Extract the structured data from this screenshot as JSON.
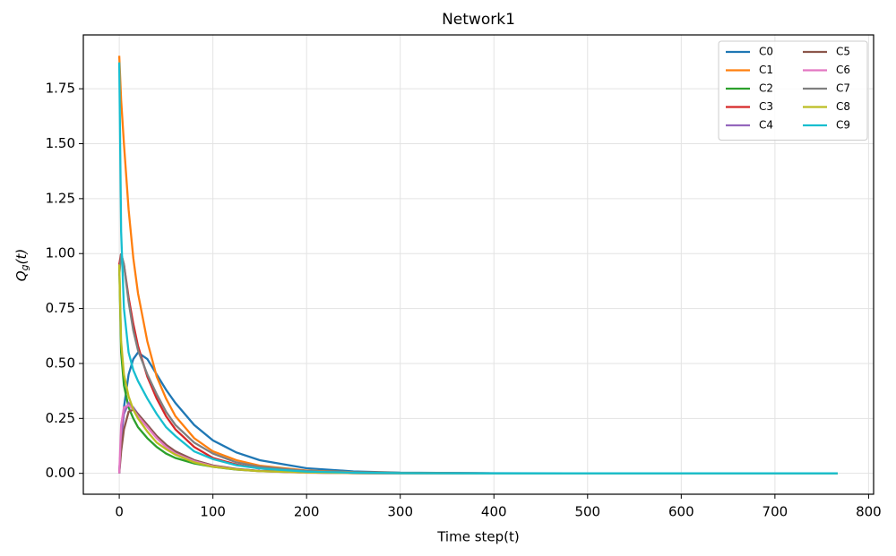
{
  "chart_data": {
    "type": "line",
    "title": "Network1",
    "xlabel": "Time step(t)",
    "ylabel": [
      "Q",
      "g",
      "(t)"
    ],
    "x": [
      0,
      2,
      5,
      10,
      15,
      20,
      30,
      40,
      50,
      60,
      80,
      100,
      125,
      150,
      200,
      250,
      300,
      400,
      500,
      600,
      767
    ],
    "series": [
      {
        "name": "C0",
        "color": "#1f77b4",
        "values": [
          0,
          0.15,
          0.3,
          0.45,
          0.52,
          0.55,
          0.52,
          0.45,
          0.38,
          0.32,
          0.22,
          0.15,
          0.095,
          0.06,
          0.023,
          0.009,
          0.003,
          0.0005,
          0.0001,
          0,
          0
        ]
      },
      {
        "name": "C1",
        "color": "#ff7f0e",
        "values": [
          1.9,
          1.7,
          1.5,
          1.2,
          0.98,
          0.82,
          0.6,
          0.44,
          0.34,
          0.26,
          0.16,
          0.1,
          0.06,
          0.035,
          0.013,
          0.005,
          0.002,
          0,
          0,
          0,
          0
        ]
      },
      {
        "name": "C2",
        "color": "#2ca02c",
        "values": [
          0.95,
          0.55,
          0.4,
          0.3,
          0.25,
          0.21,
          0.16,
          0.12,
          0.09,
          0.07,
          0.045,
          0.03,
          0.017,
          0.01,
          0.004,
          0.0015,
          0.0005,
          0,
          0,
          0,
          0
        ]
      },
      {
        "name": "C3",
        "color": "#d62728",
        "values": [
          0.95,
          1.0,
          0.95,
          0.8,
          0.68,
          0.58,
          0.44,
          0.34,
          0.26,
          0.2,
          0.12,
          0.07,
          0.04,
          0.022,
          0.007,
          0.002,
          0.001,
          0,
          0,
          0,
          0
        ]
      },
      {
        "name": "C4",
        "color": "#9467bd",
        "values": [
          0,
          0.15,
          0.27,
          0.32,
          0.3,
          0.27,
          0.22,
          0.17,
          0.13,
          0.1,
          0.06,
          0.035,
          0.02,
          0.011,
          0.004,
          0.001,
          0,
          0,
          0,
          0,
          0
        ]
      },
      {
        "name": "C5",
        "color": "#8c564b",
        "values": [
          0,
          0.1,
          0.2,
          0.28,
          0.29,
          0.27,
          0.22,
          0.17,
          0.13,
          0.1,
          0.06,
          0.036,
          0.02,
          0.011,
          0.004,
          0.001,
          0,
          0,
          0,
          0,
          0
        ]
      },
      {
        "name": "C6",
        "color": "#e377c2",
        "values": [
          0,
          0.22,
          0.3,
          0.31,
          0.29,
          0.26,
          0.21,
          0.16,
          0.12,
          0.09,
          0.055,
          0.033,
          0.018,
          0.01,
          0.003,
          0.001,
          0,
          0,
          0,
          0,
          0
        ]
      },
      {
        "name": "C7",
        "color": "#7f7f7f",
        "values": [
          0.9,
          1.0,
          0.95,
          0.78,
          0.65,
          0.56,
          0.45,
          0.36,
          0.28,
          0.22,
          0.14,
          0.09,
          0.05,
          0.03,
          0.011,
          0.004,
          0.001,
          0,
          0,
          0,
          0
        ]
      },
      {
        "name": "C8",
        "color": "#bcbd22",
        "values": [
          0.95,
          0.6,
          0.45,
          0.35,
          0.29,
          0.25,
          0.19,
          0.14,
          0.11,
          0.085,
          0.05,
          0.03,
          0.018,
          0.01,
          0.004,
          0.0015,
          0.0005,
          0,
          0,
          0,
          0
        ]
      },
      {
        "name": "C9",
        "color": "#17becf",
        "values": [
          1.87,
          1.1,
          0.75,
          0.55,
          0.47,
          0.42,
          0.34,
          0.27,
          0.21,
          0.17,
          0.1,
          0.065,
          0.037,
          0.022,
          0.008,
          0.003,
          0.001,
          0,
          0,
          0,
          0
        ]
      }
    ],
    "xlim": [
      -38.35,
      805.35
    ],
    "xticks": [
      0,
      100,
      200,
      300,
      400,
      500,
      600,
      700,
      800
    ],
    "ylim": [
      -0.095,
      1.995
    ],
    "yticks": [
      {
        "value": 0,
        "label": "0.00"
      },
      {
        "value": 0.25,
        "label": "0.25"
      },
      {
        "value": 0.5,
        "label": "0.50"
      },
      {
        "value": 0.75,
        "label": "0.75"
      },
      {
        "value": 1,
        "label": "1.00"
      },
      {
        "value": 1.25,
        "label": "1.25"
      },
      {
        "value": 1.5,
        "label": "1.50"
      },
      {
        "value": 1.75,
        "label": "1.75"
      }
    ],
    "grid": true,
    "legend": "upper right",
    "legend_columns": 2
  }
}
